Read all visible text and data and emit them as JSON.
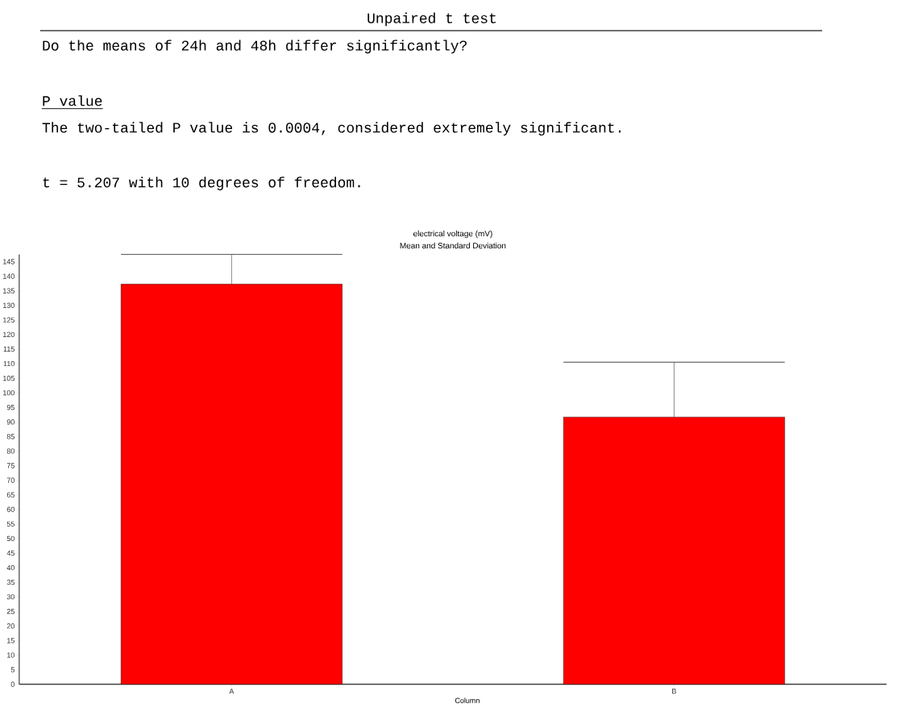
{
  "chart_data": {
    "type": "bar",
    "title": "electrical voltage (mV)",
    "subtitle": "Mean and Standard Deviation",
    "xlabel": "Column",
    "annotations": [
      "Unpaired t test",
      "Do the means of 24h and 48h differ significantly?",
      "P value",
      "The two-tailed P value is 0.0004, considered extremely significant.",
      "t = 5.207 with 10 degrees of freedom."
    ],
    "categories": [
      "A",
      "B"
    ],
    "values": [
      137.3,
      91.7
    ],
    "errors": [
      10.2,
      18.8
    ],
    "color": "#ff0000",
    "ylim": [
      0,
      147.5
    ],
    "yticks": [
      0,
      5,
      10,
      15,
      20,
      25,
      30,
      35,
      40,
      45,
      50,
      55,
      60,
      65,
      70,
      75,
      80,
      85,
      90,
      95,
      100,
      105,
      110,
      115,
      120,
      125,
      130,
      135,
      140,
      145
    ],
    "grid": false
  }
}
